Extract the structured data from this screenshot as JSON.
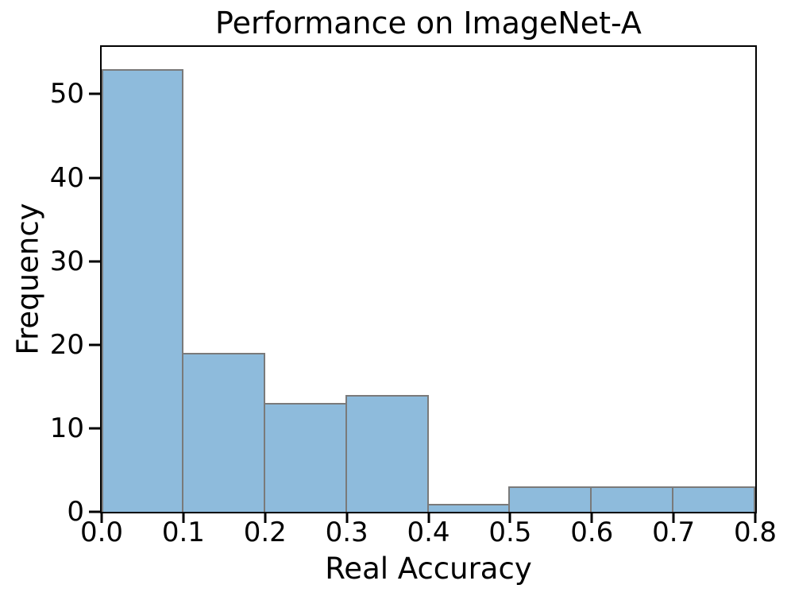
{
  "chart_data": {
    "type": "bar",
    "subtype": "histogram",
    "title": "Performance on ImageNet-A",
    "xlabel": "Real Accuracy",
    "ylabel": "Frequency",
    "bin_edges": [
      0.0,
      0.1,
      0.2,
      0.3,
      0.4,
      0.5,
      0.6,
      0.7,
      0.8
    ],
    "values": [
      53,
      19,
      13,
      14,
      1,
      3,
      3,
      3
    ],
    "x_tick_labels": [
      "0.0",
      "0.1",
      "0.2",
      "0.3",
      "0.4",
      "0.5",
      "0.6",
      "0.7",
      "0.8"
    ],
    "y_tick_values": [
      0,
      10,
      20,
      30,
      40,
      50
    ],
    "y_tick_labels": [
      "0",
      "10",
      "20",
      "30",
      "40",
      "50"
    ],
    "xlim": [
      0.0,
      0.8
    ],
    "ylim": [
      0,
      55.65
    ],
    "grid": false,
    "legend": null,
    "bar_fill_color": "#8EBBDC",
    "bar_edge_color": "#7a7a7a",
    "axis_color": "#000000",
    "background_color": "#ffffff"
  }
}
